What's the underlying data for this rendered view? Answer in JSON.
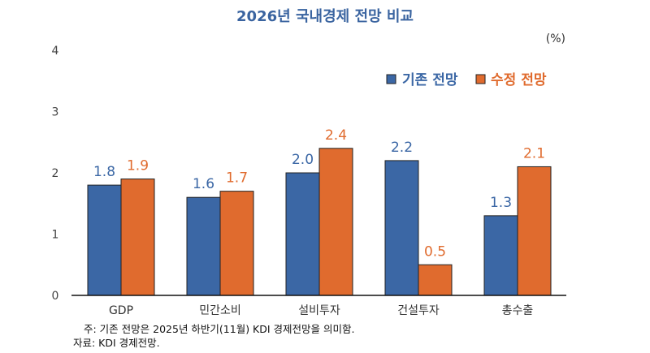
{
  "chart_data": {
    "type": "bar",
    "title": "2026년 국내경제 전망 비교",
    "unit_label": "(%)",
    "categories": [
      "GDP",
      "민간소비",
      "설비투자",
      "건설투자",
      "총수출"
    ],
    "series": [
      {
        "name": "기존 전망",
        "color": "#3b67a5",
        "label_color": "#3b67a5",
        "values": [
          1.8,
          1.6,
          2.0,
          2.2,
          1.3
        ],
        "labels": [
          "1.8",
          "1.6",
          "2.0",
          "2.2",
          "1.3"
        ]
      },
      {
        "name": "수정 전망",
        "color": "#e06b2e",
        "label_color": "#e06b2e",
        "values": [
          1.9,
          1.7,
          2.4,
          0.5,
          2.1
        ],
        "labels": [
          "1.9",
          "1.7",
          "2.4",
          "0.5",
          "2.1"
        ]
      }
    ],
    "ylim": [
      0,
      4
    ],
    "yticks": [
      "0",
      "1",
      "2",
      "3",
      "4"
    ],
    "xlabel": "",
    "ylabel": "",
    "grid": false,
    "legend_position": "top-right"
  },
  "notes": {
    "note": "주: 기존 전망은 2025년 하반기(11월) KDI 경제전망을 의미함.",
    "source": "자료: KDI 경제전망."
  }
}
